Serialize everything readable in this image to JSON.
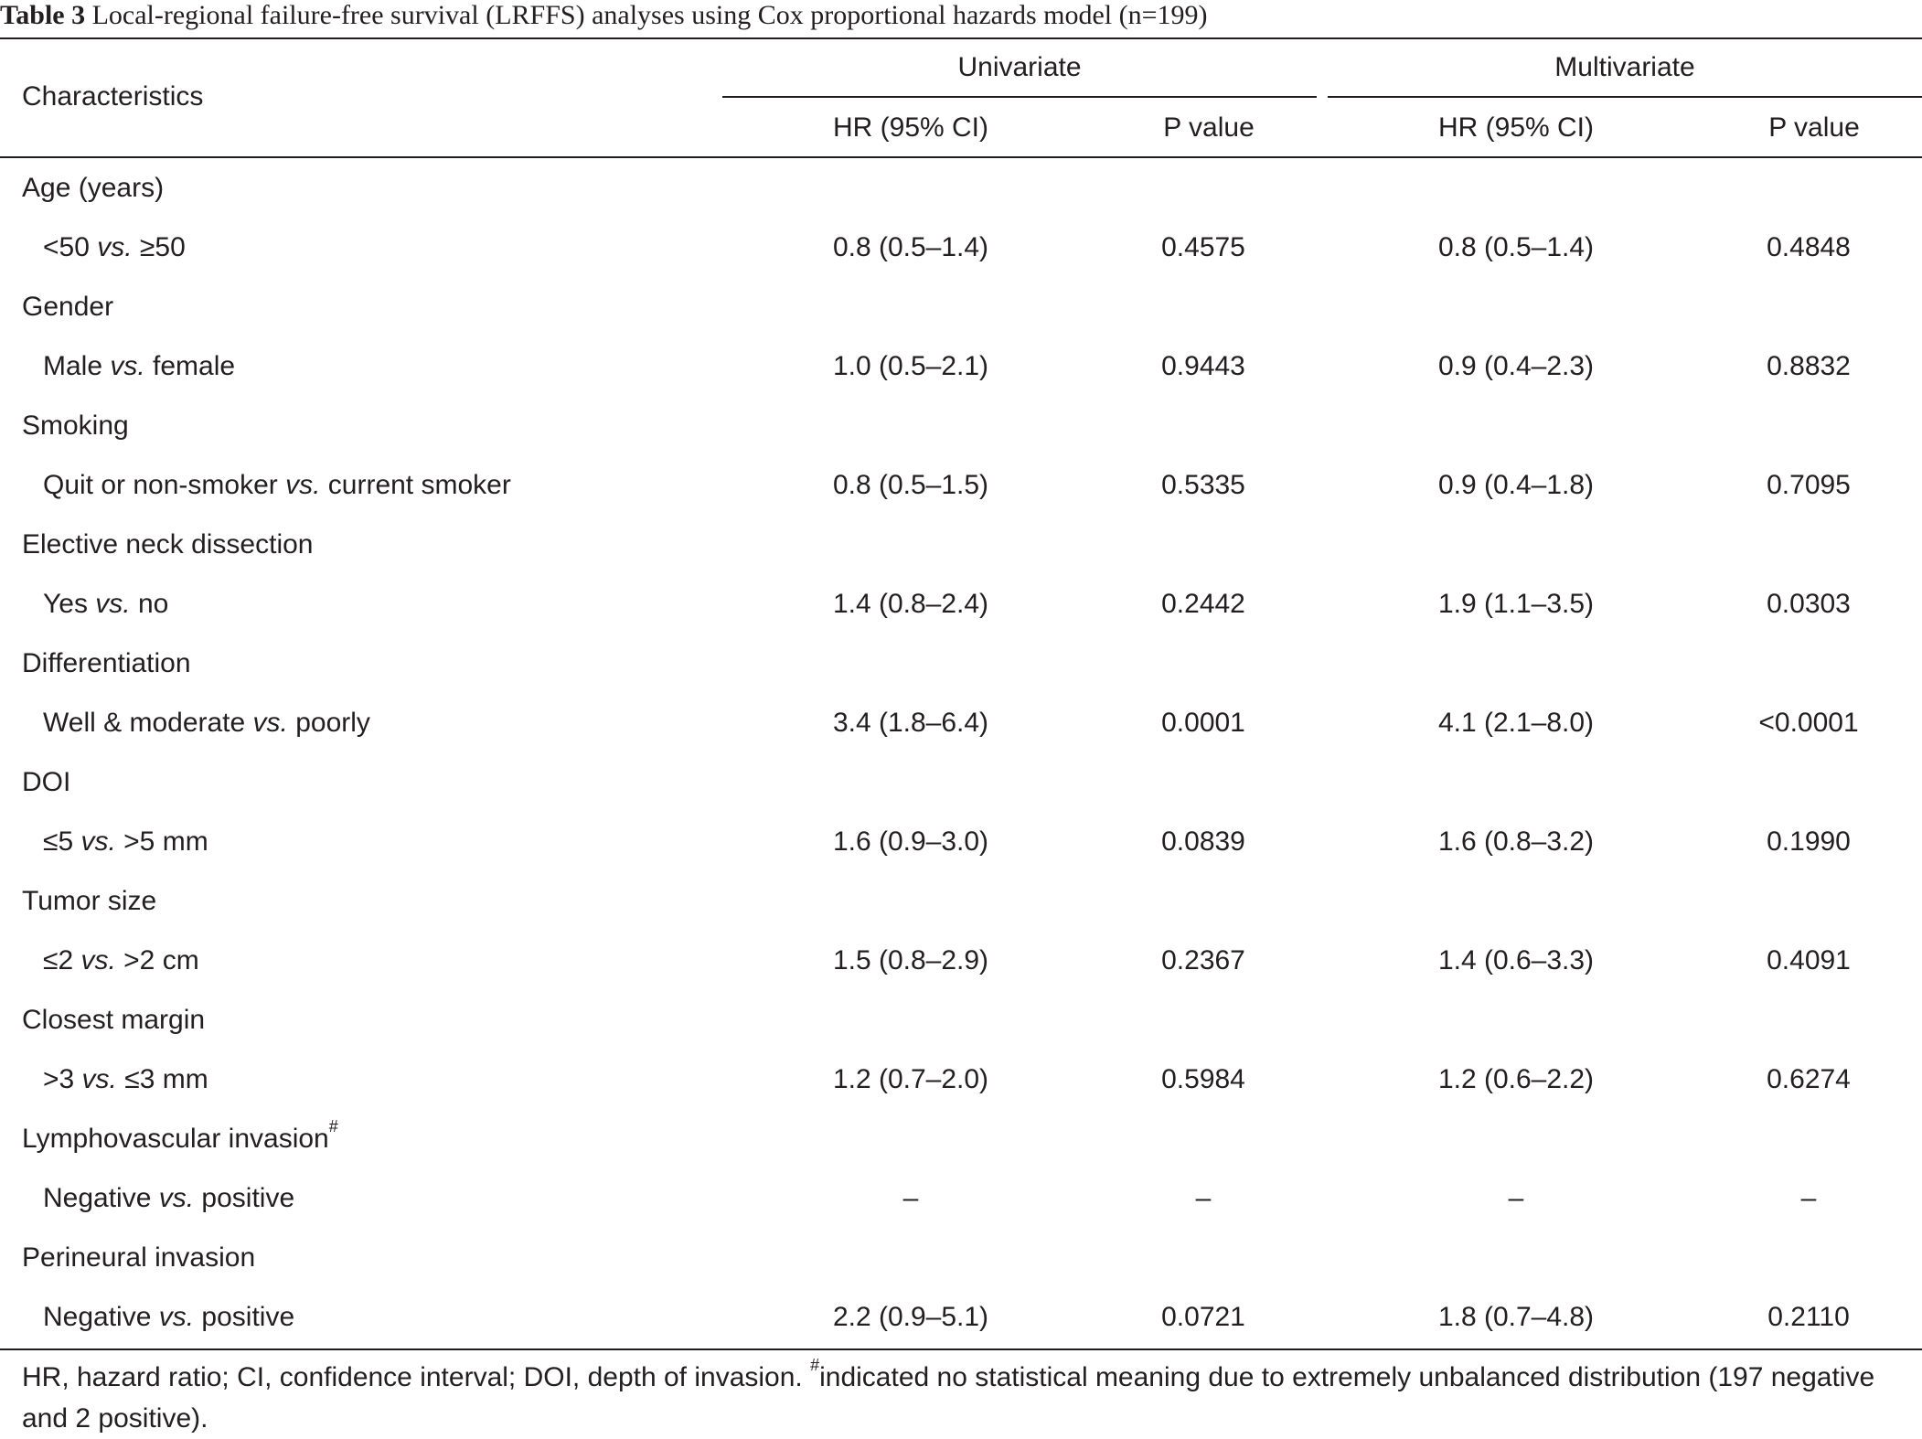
{
  "caption": {
    "label": "Table 3",
    "text": "Local-regional failure-free survival (LRFFS) analyses using Cox proportional hazards model (n=199)"
  },
  "header": {
    "characteristics": "Characteristics",
    "univariate": "Univariate",
    "multivariate": "Multivariate",
    "hr": "HR (95% CI)",
    "p": "P value"
  },
  "rows": [
    {
      "type": "group",
      "label": "Age (years)"
    },
    {
      "type": "data",
      "pre": "<50 ",
      "vs": "vs.",
      "post": " ≥50",
      "uni_hr": "0.8 (0.5–1.4)",
      "uni_p": "0.4575",
      "multi_hr": "0.8 (0.5–1.4)",
      "multi_p": "0.4848"
    },
    {
      "type": "group",
      "label": "Gender"
    },
    {
      "type": "data",
      "pre": "Male ",
      "vs": "vs.",
      "post": " female",
      "uni_hr": "1.0 (0.5–2.1)",
      "uni_p": "0.9443",
      "multi_hr": "0.9 (0.4–2.3)",
      "multi_p": "0.8832"
    },
    {
      "type": "group",
      "label": "Smoking"
    },
    {
      "type": "data",
      "pre": "Quit or non-smoker ",
      "vs": "vs.",
      "post": " current smoker",
      "uni_hr": "0.8 (0.5–1.5)",
      "uni_p": "0.5335",
      "multi_hr": "0.9 (0.4–1.8)",
      "multi_p": "0.7095"
    },
    {
      "type": "group",
      "label": "Elective neck dissection"
    },
    {
      "type": "data",
      "pre": "Yes ",
      "vs": "vs.",
      "post": " no",
      "uni_hr": "1.4 (0.8–2.4)",
      "uni_p": "0.2442",
      "multi_hr": "1.9 (1.1–3.5)",
      "multi_p": "0.0303"
    },
    {
      "type": "group",
      "label": "Differentiation"
    },
    {
      "type": "data",
      "pre": "Well & moderate ",
      "vs": "vs.",
      "post": " poorly",
      "uni_hr": "3.4 (1.8–6.4)",
      "uni_p": "0.0001",
      "multi_hr": "4.1 (2.1–8.0)",
      "multi_p": "<0.0001"
    },
    {
      "type": "group",
      "label": "DOI"
    },
    {
      "type": "data",
      "pre": "≤5 ",
      "vs": "vs.",
      "post": " >5 mm",
      "uni_hr": "1.6 (0.9–3.0)",
      "uni_p": "0.0839",
      "multi_hr": "1.6 (0.8–3.2)",
      "multi_p": "0.1990"
    },
    {
      "type": "group",
      "label": "Tumor size"
    },
    {
      "type": "data",
      "pre": "≤2 ",
      "vs": "vs.",
      "post": " >2 cm",
      "uni_hr": "1.5 (0.8–2.9)",
      "uni_p": "0.2367",
      "multi_hr": "1.4 (0.6–3.3)",
      "multi_p": "0.4091"
    },
    {
      "type": "group",
      "label": "Closest margin"
    },
    {
      "type": "data",
      "pre": ">3 ",
      "vs": "vs.",
      "post": " ≤3 mm",
      "uni_hr": "1.2 (0.7–2.0)",
      "uni_p": "0.5984",
      "multi_hr": "1.2 (0.6–2.2)",
      "multi_p": "0.6274"
    },
    {
      "type": "group",
      "label": "Lymphovascular invasion",
      "mark": "#"
    },
    {
      "type": "data",
      "pre": "Negative ",
      "vs": "vs.",
      "post": " positive",
      "uni_hr": "–",
      "uni_p": "–",
      "multi_hr": "–",
      "multi_p": "–"
    },
    {
      "type": "group",
      "label": "Perineural invasion"
    },
    {
      "type": "data",
      "pre": "Negative ",
      "vs": "vs.",
      "post": " positive",
      "uni_hr": "2.2 (0.9–5.1)",
      "uni_p": "0.0721",
      "multi_hr": "1.8 (0.7–4.8)",
      "multi_p": "0.2110"
    }
  ],
  "footnote": {
    "text1": "HR, hazard ratio; CI, confidence interval; DOI, depth of invasion. ",
    "mark": "#",
    "text2": "indicated no statistical meaning due to extremely unbalanced distribution (197 negative and 2 positive)."
  }
}
